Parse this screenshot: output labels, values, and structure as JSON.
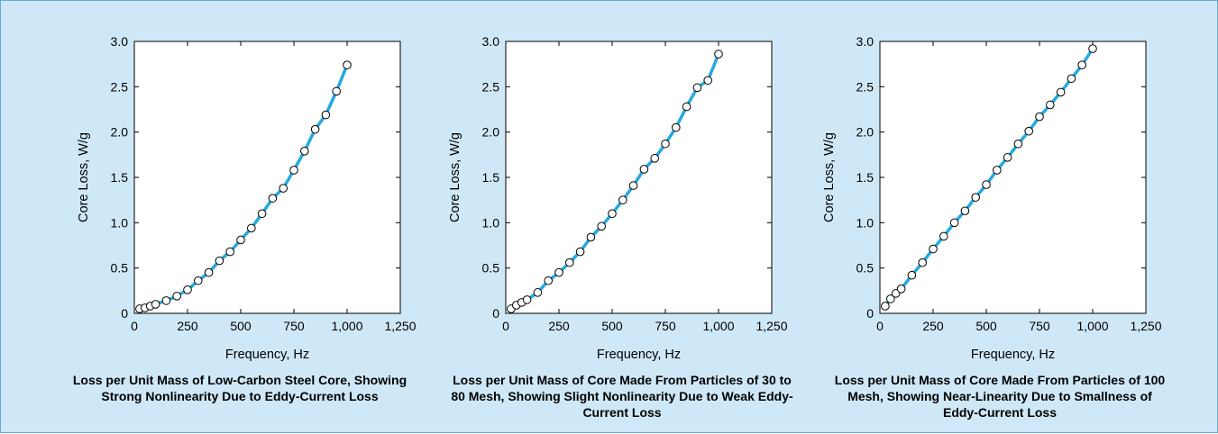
{
  "colors": {
    "background": "#cfe8f7",
    "line": "#26a9e0",
    "marker_fill": "#ffffff",
    "marker_stroke": "#000000"
  },
  "chart_data": [
    {
      "type": "line",
      "xlabel": "Frequency, Hz",
      "ylabel": "Core Loss, W/g",
      "caption": "Loss per Unit Mass of Low-Carbon Steel Core, Showing Strong Nonlinearity Due to Eddy-Current Loss",
      "xlim": [
        0,
        1250
      ],
      "ylim": [
        0,
        3.0
      ],
      "x_ticks": [
        0,
        250,
        500,
        750,
        1000,
        1250
      ],
      "x_tick_labels": [
        "0",
        "250",
        "500",
        "750",
        "1,000",
        "1,250"
      ],
      "y_ticks": [
        0,
        0.5,
        1.0,
        1.5,
        2.0,
        2.5,
        3.0
      ],
      "y_tick_labels": [
        "0",
        "0.5",
        "1.0",
        "1.5",
        "2.0",
        "2.5",
        "3.0"
      ],
      "grid": false,
      "markers": "open circles",
      "x": [
        25,
        50,
        75,
        100,
        150,
        200,
        250,
        300,
        350,
        400,
        450,
        500,
        550,
        600,
        650,
        700,
        750,
        800,
        850,
        900,
        950,
        1000
      ],
      "y": [
        0.05,
        0.06,
        0.08,
        0.1,
        0.14,
        0.19,
        0.26,
        0.36,
        0.45,
        0.58,
        0.68,
        0.81,
        0.94,
        1.1,
        1.27,
        1.38,
        1.58,
        1.79,
        2.03,
        2.19,
        2.45,
        2.74
      ]
    },
    {
      "type": "line",
      "xlabel": "Frequency, Hz",
      "ylabel": "Core Loss, W/g",
      "caption": "Loss per Unit Mass of Core Made From Particles of 30 to 80 Mesh, Showing Slight Nonlinearity Due to Weak Eddy-Current Loss",
      "xlim": [
        0,
        1250
      ],
      "ylim": [
        0,
        3.0
      ],
      "x_ticks": [
        0,
        250,
        500,
        750,
        1000,
        1250
      ],
      "x_tick_labels": [
        "0",
        "250",
        "500",
        "750",
        "1,000",
        "1,250"
      ],
      "y_ticks": [
        0,
        0.5,
        1.0,
        1.5,
        2.0,
        2.5,
        3.0
      ],
      "y_tick_labels": [
        "0",
        "0.5",
        "1.0",
        "1.5",
        "2.0",
        "2.5",
        "3.0"
      ],
      "grid": false,
      "markers": "open circles",
      "x": [
        25,
        50,
        75,
        100,
        150,
        200,
        250,
        300,
        350,
        400,
        450,
        500,
        550,
        600,
        650,
        700,
        750,
        800,
        850,
        900,
        950,
        1000
      ],
      "y": [
        0.05,
        0.09,
        0.12,
        0.15,
        0.23,
        0.36,
        0.45,
        0.56,
        0.68,
        0.84,
        0.96,
        1.1,
        1.25,
        1.41,
        1.59,
        1.71,
        1.87,
        2.05,
        2.28,
        2.49,
        2.57,
        2.86
      ]
    },
    {
      "type": "line",
      "xlabel": "Frequency, Hz",
      "ylabel": "Core Loss, W/g",
      "caption": "Loss per Unit Mass of Core Made From Particles of 100 Mesh, Showing Near-Linearity Due to Smallness of Eddy-Current Loss",
      "xlim": [
        0,
        1250
      ],
      "ylim": [
        0,
        3.0
      ],
      "x_ticks": [
        0,
        250,
        500,
        750,
        1000,
        1250
      ],
      "x_tick_labels": [
        "0",
        "250",
        "500",
        "750",
        "1,000",
        "1,250"
      ],
      "y_ticks": [
        0,
        0.5,
        1.0,
        1.5,
        2.0,
        2.5,
        3.0
      ],
      "y_tick_labels": [
        "0",
        "0.5",
        "1.0",
        "1.5",
        "2.0",
        "2.5",
        "3.0"
      ],
      "grid": false,
      "markers": "open circles",
      "x": [
        25,
        50,
        75,
        100,
        150,
        200,
        250,
        300,
        350,
        400,
        450,
        500,
        550,
        600,
        650,
        700,
        750,
        800,
        850,
        900,
        950,
        1000
      ],
      "y": [
        0.08,
        0.16,
        0.22,
        0.27,
        0.42,
        0.56,
        0.71,
        0.85,
        1.0,
        1.13,
        1.28,
        1.42,
        1.58,
        1.72,
        1.87,
        2.01,
        2.17,
        2.3,
        2.44,
        2.59,
        2.74,
        2.92
      ]
    }
  ]
}
